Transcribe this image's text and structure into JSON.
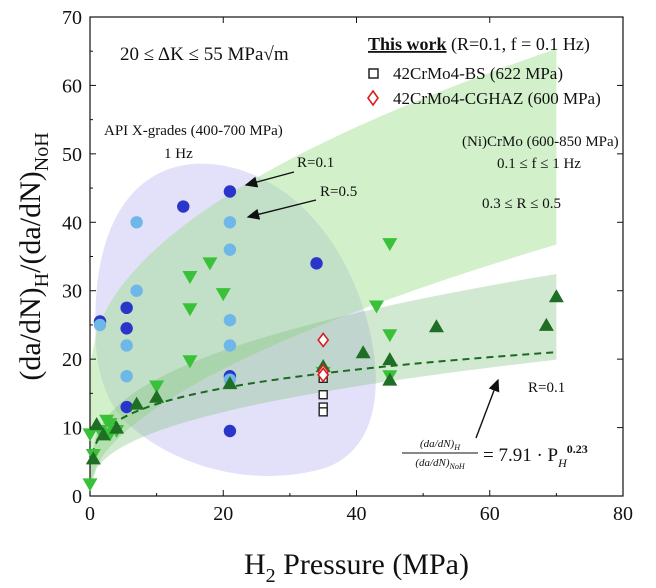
{
  "chart_data": {
    "type": "scatter",
    "xlabel_main": "H",
    "xlabel_sub": "2",
    "xlabel_rest": " Pressure (MPa)",
    "ylabel_parts": [
      "(da/dN)",
      "H",
      "/(da/dN)",
      "NoH"
    ],
    "xlim": [
      0,
      80
    ],
    "ylim": [
      0,
      70
    ],
    "x_ticks": [
      0,
      20,
      40,
      60,
      80
    ],
    "y_ticks": [
      0,
      10,
      20,
      30,
      40,
      50,
      60,
      70
    ],
    "delta_k_range": "20 ≤ ΔK ≤ 55 MPa√m",
    "legend": {
      "title": "This work",
      "title_suffix": "(R=0.1, f = 0.1 Hz)",
      "entries": [
        {
          "label": "42CrMo4-BS (622 MPa)",
          "marker": "square",
          "color": "#222222"
        },
        {
          "label": "42CrMo4-CGHAZ (600 MPa)",
          "marker": "diamond",
          "color": "#d62020"
        }
      ]
    },
    "annotations": {
      "api_title": "API X-grades (400-700 MPa)",
      "api_freq": "1 Hz",
      "r01_top": "R=0.1",
      "r05_top": "R=0.5",
      "nicrmo_title": "(Ni)CrMo (600-850 MPa)",
      "nicrmo_freq": "0.1 ≤ f ≤ 1 Hz",
      "nicrmo_r": "0.3 ≤ R ≤ 0.5",
      "r01_band": "R=0.1",
      "eq_num": "(da/dN)",
      "eq_num_sub": "H",
      "eq_den": "(da/dN)",
      "eq_den_sub": "NoH",
      "eq_rhs": "= 7.91 · P",
      "eq_sub": "H",
      "eq_exp": "0.23"
    },
    "fit": {
      "coefficient": 7.91,
      "exponent": 0.23,
      "x_range": [
        0.3,
        70
      ]
    },
    "series": [
      {
        "name": "API X-grades R=0.1",
        "marker": "circle",
        "color": "#2a35c9",
        "points": [
          [
            1.5,
            25.5
          ],
          [
            5.5,
            27.5
          ],
          [
            5.5,
            24.5
          ],
          [
            5.5,
            13
          ],
          [
            14,
            42.3
          ],
          [
            21,
            44.5
          ],
          [
            21,
            17.5
          ],
          [
            21,
            9.5
          ],
          [
            34,
            34
          ]
        ]
      },
      {
        "name": "API X-grades R=0.5",
        "marker": "circle",
        "color": "#6fb7e8",
        "points": [
          [
            1.5,
            25
          ],
          [
            5.5,
            22
          ],
          [
            5.5,
            17.5
          ],
          [
            7,
            40
          ],
          [
            7,
            30
          ],
          [
            21,
            40
          ],
          [
            21,
            36
          ],
          [
            21,
            25.7
          ],
          [
            21,
            22
          ],
          [
            21,
            17
          ]
        ]
      },
      {
        "name": "(Ni)CrMo 0.3≤R≤0.5",
        "marker": "triangle-down",
        "color": "#3ac13a",
        "points": [
          [
            0,
            1.7
          ],
          [
            0,
            9
          ],
          [
            0.5,
            6
          ],
          [
            1.5,
            9.5
          ],
          [
            2.5,
            11
          ],
          [
            3,
            9
          ],
          [
            3,
            10.5
          ],
          [
            4,
            9.5
          ],
          [
            10,
            16
          ],
          [
            15,
            32
          ],
          [
            15,
            27.3
          ],
          [
            15,
            19.7
          ],
          [
            18,
            34
          ],
          [
            20,
            29.5
          ],
          [
            35,
            18
          ],
          [
            43,
            27.7
          ],
          [
            45,
            36.8
          ],
          [
            45,
            23.5
          ],
          [
            45,
            17.5
          ]
        ]
      },
      {
        "name": "(Ni)CrMo R=0.1",
        "marker": "triangle-up",
        "color": "#1f6e25",
        "points": [
          [
            0.5,
            5.5
          ],
          [
            1,
            10.5
          ],
          [
            2,
            9
          ],
          [
            4,
            10
          ],
          [
            7,
            13.5
          ],
          [
            10,
            14.5
          ],
          [
            21,
            16.5
          ],
          [
            35,
            19
          ],
          [
            41,
            21
          ],
          [
            45,
            20
          ],
          [
            45,
            17
          ],
          [
            52,
            24.8
          ],
          [
            68.5,
            25
          ],
          [
            70,
            29.2
          ]
        ]
      },
      {
        "name": "42CrMo4-BS (622 MPa)",
        "marker": "square",
        "color": "#222222",
        "points": [
          [
            35,
            17.2
          ],
          [
            35,
            14.8
          ],
          [
            35,
            13
          ],
          [
            35,
            12.3
          ]
        ]
      },
      {
        "name": "42CrMo4-CGHAZ (600 MPa)",
        "marker": "diamond",
        "color": "#d62020",
        "points": [
          [
            35,
            22.8
          ],
          [
            35,
            18.2
          ],
          [
            35,
            17.7
          ]
        ]
      }
    ]
  }
}
